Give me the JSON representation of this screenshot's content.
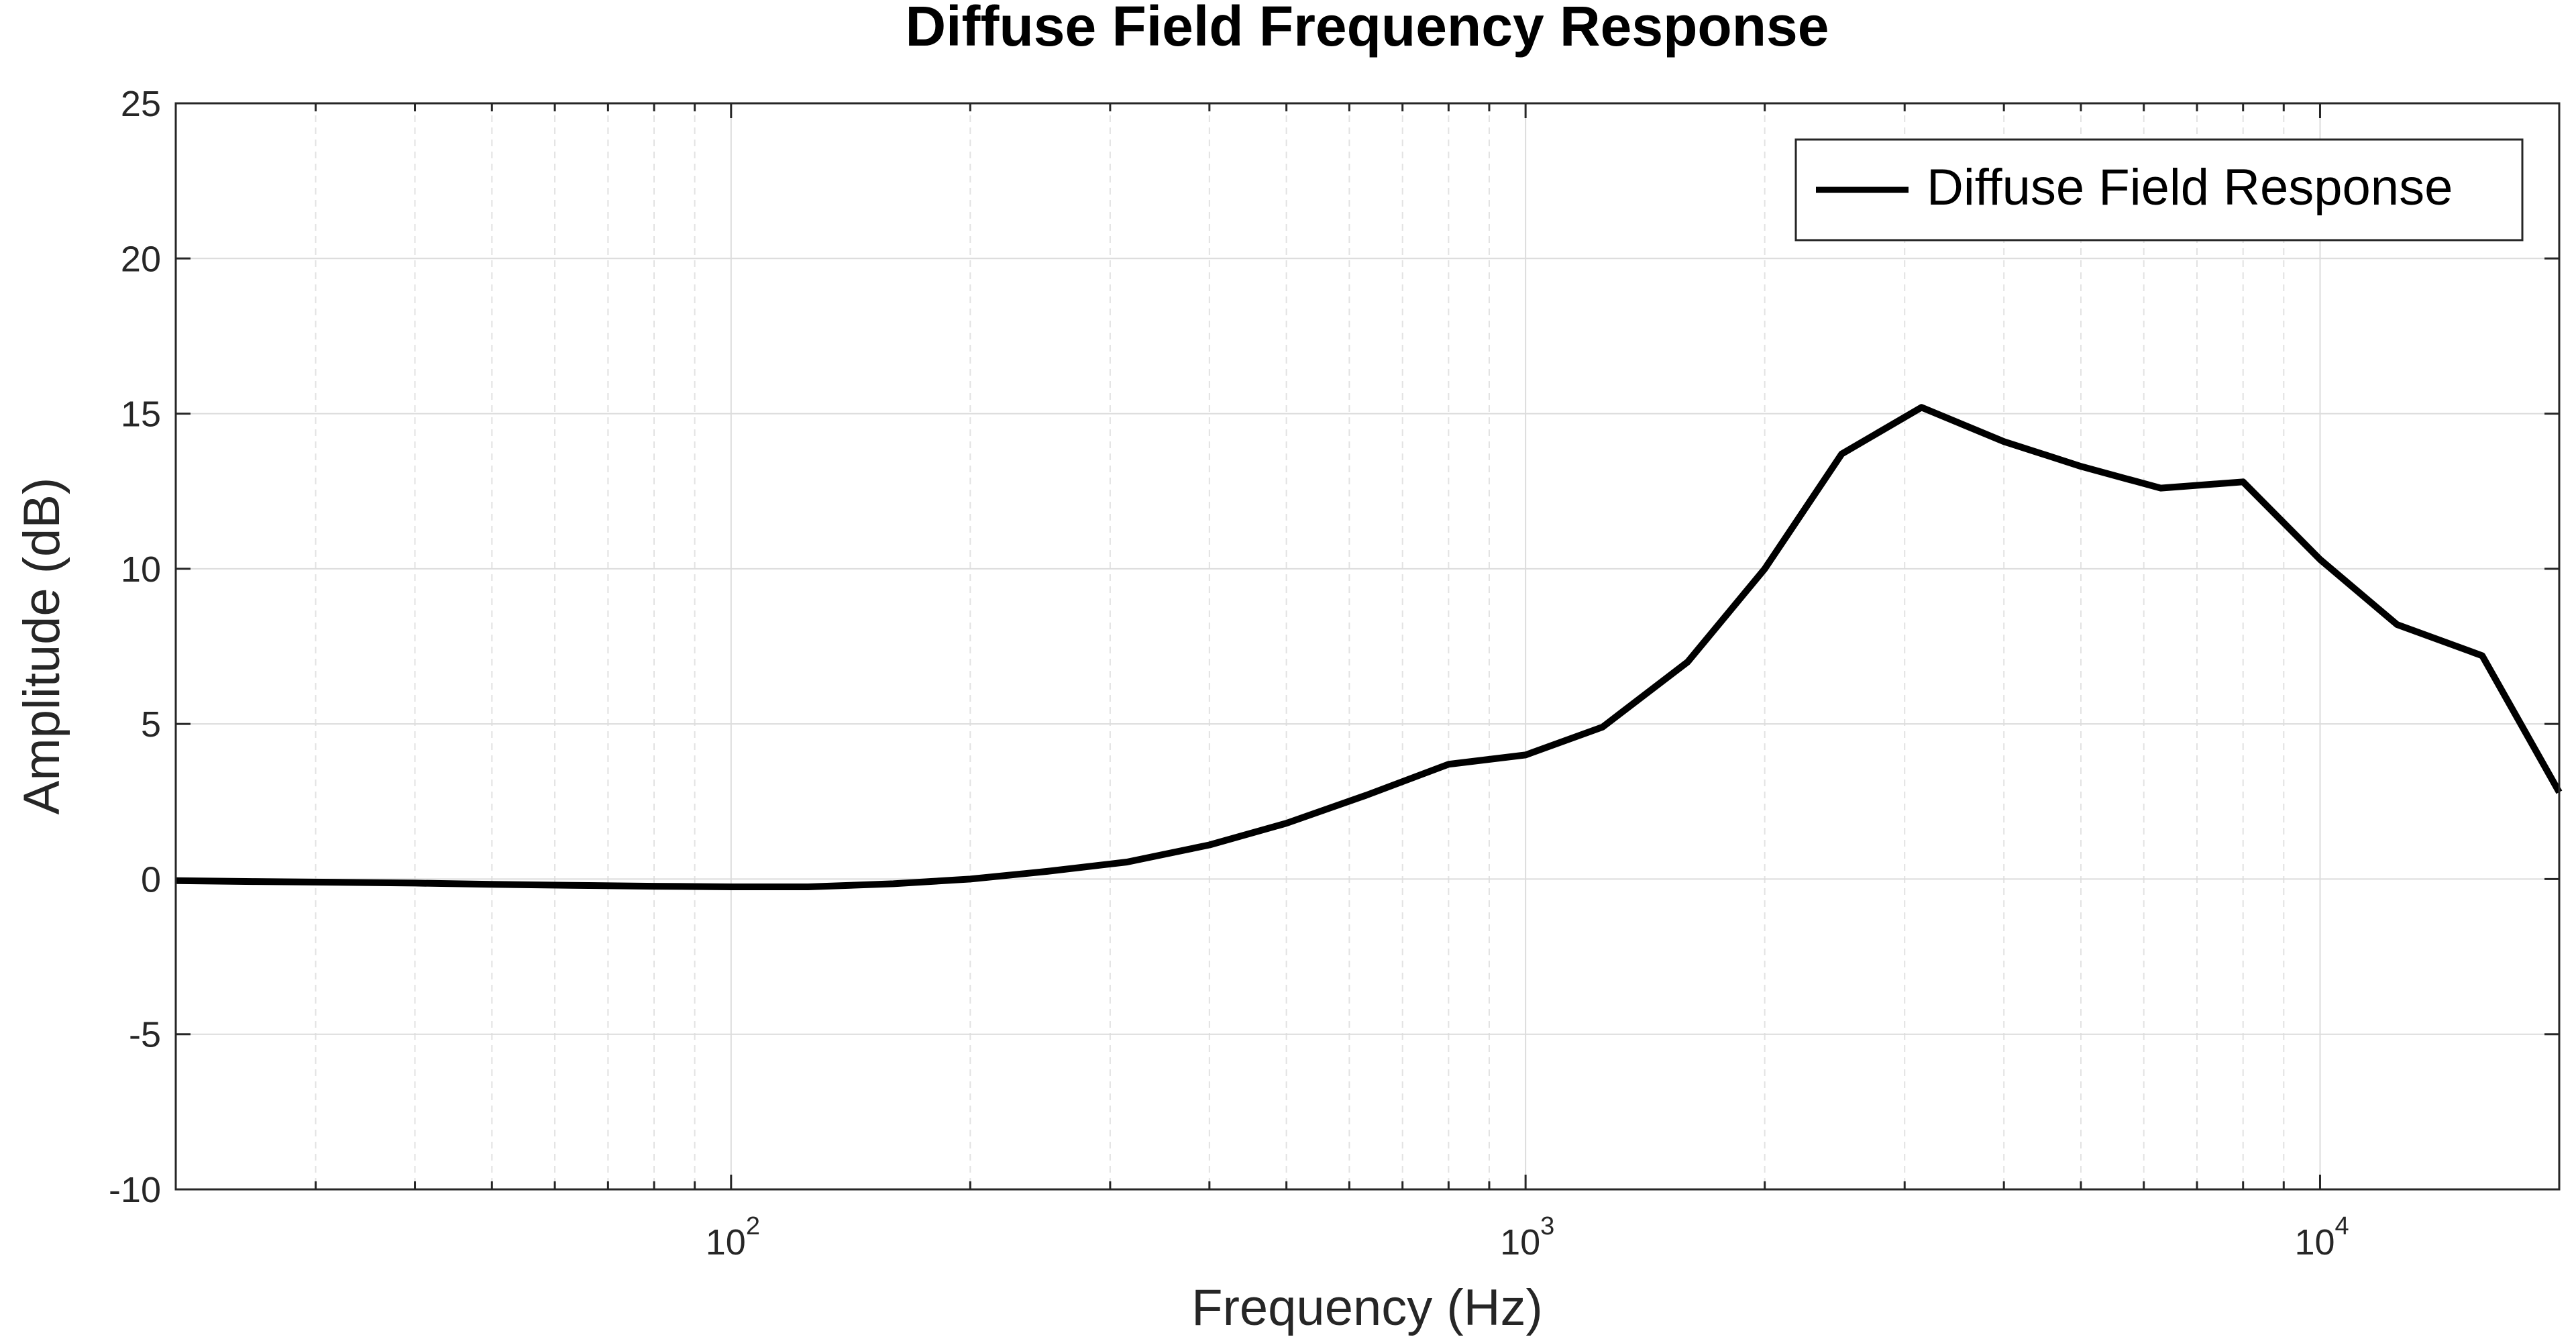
{
  "chart_data": {
    "type": "line",
    "title": "Diffuse Field Frequency Response",
    "xlabel": "Frequency (Hz)",
    "ylabel": "Amplitude (dB)",
    "xscale": "log",
    "xlim": [
      20,
      20000
    ],
    "ylim": [
      -10,
      25
    ],
    "yticks": [
      -10,
      -5,
      0,
      5,
      10,
      15,
      20,
      25
    ],
    "xticks": [
      {
        "value": 100,
        "base": "10",
        "exp": "2"
      },
      {
        "value": 1000,
        "base": "10",
        "exp": "3"
      },
      {
        "value": 10000,
        "base": "10",
        "exp": "4"
      }
    ],
    "grid": true,
    "legend_position": "top-right",
    "series": [
      {
        "name": "Diffuse Field Response",
        "color": "#000000",
        "x": [
          20,
          25,
          31.5,
          40,
          50,
          63,
          80,
          100,
          125,
          160,
          200,
          250,
          315,
          400,
          500,
          630,
          800,
          1000,
          1250,
          1600,
          2000,
          2500,
          3150,
          4000,
          5000,
          6300,
          8000,
          10000,
          12500,
          16000,
          20000
        ],
        "y": [
          -0.05,
          -0.08,
          -0.1,
          -0.13,
          -0.17,
          -0.2,
          -0.23,
          -0.25,
          -0.25,
          -0.15,
          0.0,
          0.25,
          0.55,
          1.1,
          1.8,
          2.7,
          3.7,
          4.0,
          4.9,
          7.0,
          10.0,
          13.7,
          15.2,
          14.1,
          13.3,
          12.6,
          12.8,
          10.3,
          8.2,
          7.2,
          2.8
        ]
      }
    ]
  }
}
